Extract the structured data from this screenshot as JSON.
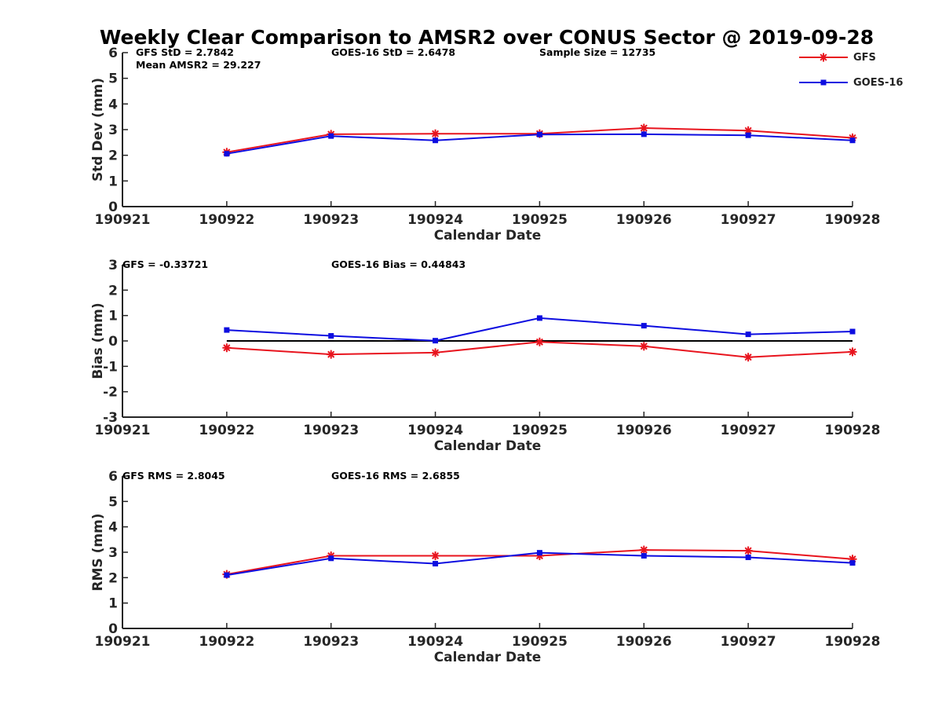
{
  "title": "Weekly Clear Comparison to AMSR2 over CONUS Sector @ 2019-09-28",
  "legend": [
    {
      "name": "GFS",
      "color": "#e8141e",
      "marker": "asterisk"
    },
    {
      "name": "GOES-16",
      "color": "#0d0de0",
      "marker": "square"
    }
  ],
  "chart_data": [
    {
      "type": "line",
      "xlabel": "Calendar Date",
      "ylabel": "Std Dev (mm)",
      "xlim": [
        190921,
        190928
      ],
      "ylim": [
        0,
        6
      ],
      "yticks": [
        "0",
        "1",
        "2",
        "3",
        "4",
        "5",
        "6"
      ],
      "xticks": [
        "190921",
        "190922",
        "190923",
        "190924",
        "190925",
        "190926",
        "190927",
        "190928"
      ],
      "annotations": [
        "GFS StD = 2.7842",
        "GOES-16 StD = 2.6478",
        "Sample Size = 12735",
        "Mean AMSR2 = 29.227"
      ],
      "zero_line": false,
      "x": [
        190922,
        190923,
        190924,
        190925,
        190926,
        190927,
        190928
      ],
      "series": [
        {
          "name": "GFS",
          "values": [
            2.12,
            2.82,
            2.84,
            2.84,
            3.06,
            2.96,
            2.68
          ]
        },
        {
          "name": "GOES-16",
          "values": [
            2.06,
            2.75,
            2.58,
            2.81,
            2.82,
            2.78,
            2.58
          ]
        }
      ]
    },
    {
      "type": "line",
      "xlabel": "Calendar Date",
      "ylabel": "Bias (mm)",
      "xlim": [
        190921,
        190928
      ],
      "ylim": [
        -3,
        3
      ],
      "yticks": [
        "-3",
        "-2",
        "-1",
        "0",
        "1",
        "2",
        "3"
      ],
      "xticks": [
        "190921",
        "190922",
        "190923",
        "190924",
        "190925",
        "190926",
        "190927",
        "190928"
      ],
      "annotations": [
        "GFS = -0.33721",
        "GOES-16 Bias  = 0.44843"
      ],
      "zero_line": true,
      "x": [
        190922,
        190923,
        190924,
        190925,
        190926,
        190927,
        190928
      ],
      "series": [
        {
          "name": "GFS",
          "values": [
            -0.27,
            -0.53,
            -0.46,
            -0.04,
            -0.21,
            -0.64,
            -0.43
          ]
        },
        {
          "name": "GOES-16",
          "values": [
            0.43,
            0.2,
            0.01,
            0.9,
            0.6,
            0.26,
            0.37
          ]
        }
      ]
    },
    {
      "type": "line",
      "xlabel": "Calendar Date",
      "ylabel": "RMS (mm)",
      "xlim": [
        190921,
        190928
      ],
      "ylim": [
        0,
        6
      ],
      "yticks": [
        "0",
        "1",
        "2",
        "3",
        "4",
        "5",
        "6"
      ],
      "xticks": [
        "190921",
        "190922",
        "190923",
        "190924",
        "190925",
        "190926",
        "190927",
        "190928"
      ],
      "annotations": [
        "GFS RMS = 2.8045",
        "GOES-16 RMS = 2.6855"
      ],
      "zero_line": false,
      "x": [
        190922,
        190923,
        190924,
        190925,
        190926,
        190927,
        190928
      ],
      "series": [
        {
          "name": "GFS",
          "values": [
            2.13,
            2.86,
            2.86,
            2.86,
            3.09,
            3.06,
            2.73
          ]
        },
        {
          "name": "GOES-16",
          "values": [
            2.1,
            2.76,
            2.55,
            2.98,
            2.86,
            2.8,
            2.58
          ]
        }
      ]
    }
  ]
}
